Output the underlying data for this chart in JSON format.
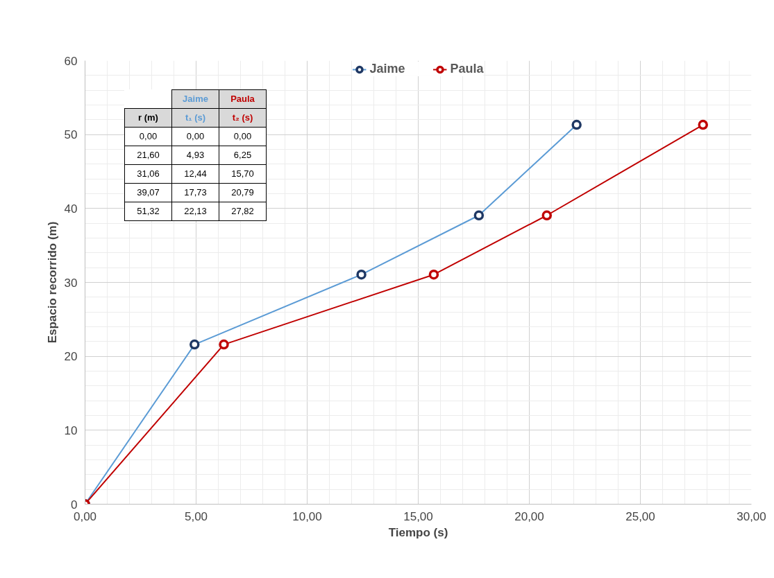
{
  "chart_data": {
    "type": "line",
    "xlabel": "Tiempo (s)",
    "ylabel": "Espacio recorrido (m)",
    "series": [
      {
        "name": "Jaime",
        "color": "#5b9bd5",
        "colors": [
          "#1f3864",
          "#1f3864",
          "#1f3864",
          "#1f3864",
          "#1f3864"
        ],
        "x": [
          0,
          4.93,
          12.44,
          17.73,
          22.13
        ],
        "values": [
          0,
          21.6,
          31.06,
          39.07,
          51.32
        ]
      },
      {
        "name": "Paula",
        "color": "#c00000",
        "colors": [
          "#c00000",
          "#c00000",
          "#c00000",
          "#c00000",
          "#c00000"
        ],
        "x": [
          0,
          6.25,
          15.7,
          20.79,
          27.82
        ],
        "values": [
          0,
          21.6,
          31.06,
          39.07,
          51.32
        ]
      }
    ],
    "xlim": [
      0,
      30
    ],
    "ylim": [
      0,
      60
    ],
    "xticks": [
      {
        "value": 0,
        "label": "0,00"
      },
      {
        "value": 5,
        "label": "5,00"
      },
      {
        "value": 10,
        "label": "10,00"
      },
      {
        "value": 15,
        "label": "15,00"
      },
      {
        "value": 20,
        "label": "20,00"
      },
      {
        "value": 25,
        "label": "25,00"
      },
      {
        "value": 30,
        "label": "30,00"
      }
    ],
    "yticks": [
      0,
      10,
      20,
      30,
      40,
      50,
      60
    ],
    "grid": true,
    "legend": "top",
    "marker": "circle",
    "line_style": "solid",
    "annotations": [
      "r (m)",
      "t₁ (s)",
      "t₂ (s)",
      "0,00",
      "0,00",
      "0,00",
      "21,60",
      "4,93",
      "6,25",
      "31,06",
      "12,44",
      "15,70",
      "39,07",
      "17,73",
      "20,79",
      "51,32",
      "22,13",
      "27,82"
    ]
  }
}
